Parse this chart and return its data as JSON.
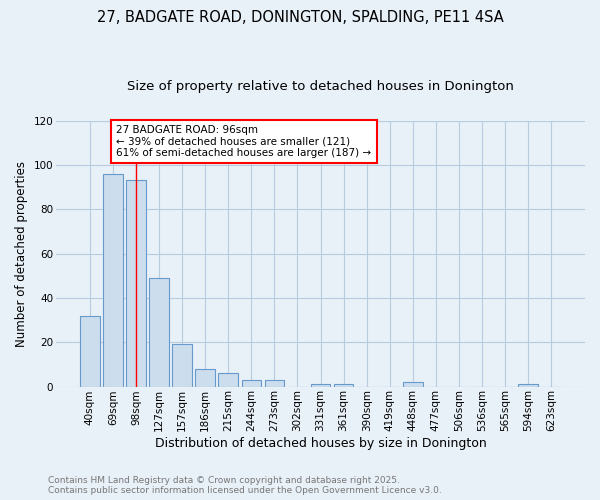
{
  "title_line1": "27, BADGATE ROAD, DONINGTON, SPALDING, PE11 4SA",
  "title_line2": "Size of property relative to detached houses in Donington",
  "xlabel": "Distribution of detached houses by size in Donington",
  "ylabel": "Number of detached properties",
  "categories": [
    "40sqm",
    "69sqm",
    "98sqm",
    "127sqm",
    "157sqm",
    "186sqm",
    "215sqm",
    "244sqm",
    "273sqm",
    "302sqm",
    "331sqm",
    "361sqm",
    "390sqm",
    "419sqm",
    "448sqm",
    "477sqm",
    "506sqm",
    "536sqm",
    "565sqm",
    "594sqm",
    "623sqm"
  ],
  "values": [
    32,
    96,
    93,
    49,
    19,
    8,
    6,
    3,
    3,
    0,
    1,
    1,
    0,
    0,
    2,
    0,
    0,
    0,
    0,
    1,
    0
  ],
  "bar_color": "#ccdded",
  "bar_edge_color": "#6699cc",
  "bar_linewidth": 0.8,
  "bar_width": 0.85,
  "red_line_x": 2.0,
  "annotation_text": "27 BADGATE ROAD: 96sqm\n← 39% of detached houses are smaller (121)\n61% of semi-detached houses are larger (187) →",
  "annotation_box_color": "white",
  "annotation_box_edge_color": "red",
  "red_line_color": "red",
  "grid_color": "#b8cce0",
  "background_color": "#e8f0f8",
  "ylim": [
    0,
    120
  ],
  "yticks": [
    0,
    20,
    40,
    60,
    80,
    100,
    120
  ],
  "footer_line1": "Contains HM Land Registry data © Crown copyright and database right 2025.",
  "footer_line2": "Contains public sector information licensed under the Open Government Licence v3.0.",
  "footer_color": "#777777",
  "title_fontsize": 10.5,
  "subtitle_fontsize": 9.5,
  "xlabel_fontsize": 9,
  "ylabel_fontsize": 8.5,
  "tick_fontsize": 7.5,
  "annotation_fontsize": 7.5,
  "footer_fontsize": 6.5
}
